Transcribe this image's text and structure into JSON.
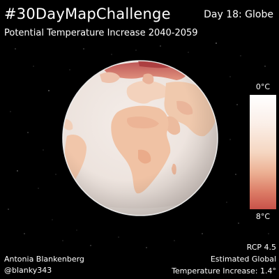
{
  "header": {
    "title": "#30DayMapChallenge",
    "day": "Day 18: Globe",
    "subtitle": "Potential Temperature Increase 2040-2059"
  },
  "legend": {
    "min_label": "0°C",
    "max_label": "8°C",
    "min_value": 0,
    "max_value": 8,
    "unit": "°C",
    "colors": [
      "#ffffff",
      "#fbefe8",
      "#f5d7c2",
      "#ecb093",
      "#dc7c66",
      "#c8524a"
    ]
  },
  "footer": {
    "author": "Antonia Blankenberg",
    "handle": "@blanky343",
    "scenario": "RCP 4.5",
    "estimate_line1": "Estimated Global",
    "estimate_line2": "Temperature Increase: 1.4°"
  },
  "colors": {
    "background": "#000000",
    "text": "#ffffff",
    "ocean": "#eee6e2",
    "land_warm": "#f1c4a4",
    "land_hot": "#e8a07e",
    "arctic_hot": "#c8524a"
  }
}
